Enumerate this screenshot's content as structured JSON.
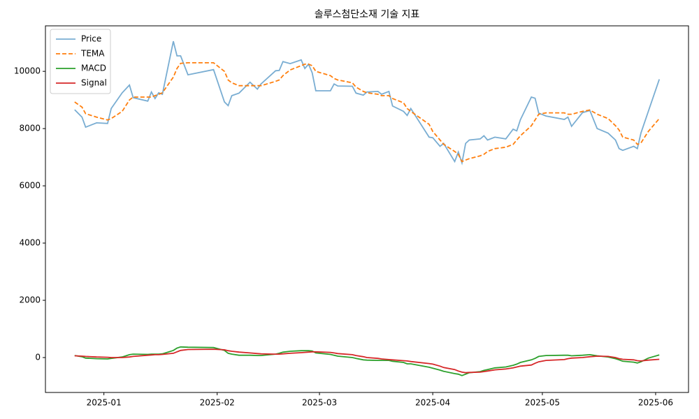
{
  "chart_data": {
    "type": "line",
    "title": "솔루스첨단소재 기술 지표",
    "x": [
      -8,
      -6,
      -5,
      -2,
      1,
      2,
      5,
      7,
      8,
      12,
      13,
      14,
      15,
      16,
      19,
      20,
      21,
      23,
      30,
      33,
      34,
      35,
      37,
      40,
      42,
      43,
      47,
      48,
      49,
      51,
      54,
      55,
      56,
      57,
      58,
      62,
      63,
      64,
      68,
      69,
      71,
      72,
      75,
      76,
      78,
      79,
      82,
      83,
      84,
      89,
      90,
      92,
      93,
      96,
      97,
      98,
      99,
      100,
      103,
      104,
      105,
      107,
      110,
      112,
      113,
      114,
      117,
      118,
      119,
      121,
      126,
      127,
      128,
      131,
      133,
      135,
      138,
      140,
      141,
      142,
      145,
      146,
      147,
      149,
      152
    ],
    "series": [
      {
        "name": "Price",
        "color": "#1f77b4",
        "alpha": 0.6,
        "style": "solid",
        "values": [
          8660,
          8400,
          8050,
          8200,
          8180,
          8700,
          9250,
          9520,
          9080,
          8960,
          9280,
          9050,
          9250,
          9200,
          11050,
          10540,
          10540,
          9880,
          10060,
          8930,
          8800,
          9150,
          9240,
          9620,
          9380,
          9560,
          10020,
          10030,
          10340,
          10270,
          10400,
          10100,
          10250,
          9950,
          9320,
          9320,
          9560,
          9490,
          9480,
          9240,
          9170,
          9280,
          9300,
          9200,
          9300,
          8790,
          8600,
          8460,
          8700,
          7700,
          7680,
          7380,
          7480,
          6850,
          7180,
          6800,
          7480,
          7600,
          7640,
          7750,
          7600,
          7700,
          7640,
          7980,
          7920,
          8310,
          9100,
          9060,
          8540,
          8440,
          8320,
          8400,
          8080,
          8560,
          8630,
          8000,
          7840,
          7600,
          7300,
          7240,
          7380,
          7300,
          7850,
          8600,
          9720
        ]
      },
      {
        "name": "TEMA",
        "color": "#ff7f0e",
        "alpha": 1,
        "style": "dashed",
        "values": [
          8930,
          8750,
          8520,
          8400,
          8300,
          8350,
          8600,
          9000,
          9100,
          9100,
          9100,
          9150,
          9200,
          9250,
          9800,
          10100,
          10280,
          10300,
          10300,
          10000,
          9700,
          9600,
          9500,
          9500,
          9500,
          9500,
          9650,
          9700,
          9850,
          10050,
          10200,
          10250,
          10250,
          10200,
          10000,
          9850,
          9750,
          9700,
          9600,
          9450,
          9300,
          9250,
          9200,
          9150,
          9150,
          9050,
          8900,
          8700,
          8600,
          8150,
          7900,
          7600,
          7450,
          7200,
          7100,
          6850,
          6900,
          6950,
          7050,
          7100,
          7200,
          7300,
          7350,
          7450,
          7600,
          7750,
          8100,
          8300,
          8500,
          8550,
          8550,
          8500,
          8500,
          8600,
          8650,
          8500,
          8350,
          8100,
          7950,
          7700,
          7600,
          7450,
          7500,
          7900,
          8350
        ]
      },
      {
        "name": "MACD",
        "color": "#2ca02c",
        "alpha": 1,
        "style": "solid",
        "values": [
          70,
          30,
          -20,
          -40,
          -50,
          -30,
          20,
          100,
          120,
          110,
          120,
          120,
          120,
          130,
          250,
          330,
          370,
          360,
          350,
          250,
          150,
          120,
          80,
          80,
          70,
          70,
          120,
          150,
          190,
          220,
          240,
          240,
          240,
          230,
          160,
          110,
          80,
          50,
          0,
          -30,
          -80,
          -90,
          -100,
          -100,
          -100,
          -130,
          -170,
          -220,
          -220,
          -340,
          -370,
          -440,
          -480,
          -560,
          -580,
          -630,
          -580,
          -530,
          -490,
          -450,
          -420,
          -360,
          -330,
          -270,
          -230,
          -170,
          -80,
          -30,
          40,
          70,
          80,
          80,
          60,
          80,
          100,
          60,
          20,
          -40,
          -80,
          -130,
          -160,
          -190,
          -150,
          -20,
          90
        ]
      },
      {
        "name": "Signal",
        "color": "#d62728",
        "alpha": 1,
        "style": "solid",
        "values": [
          60,
          50,
          40,
          20,
          10,
          0,
          0,
          20,
          40,
          80,
          90,
          100,
          100,
          110,
          150,
          200,
          250,
          280,
          290,
          270,
          240,
          220,
          190,
          160,
          140,
          130,
          120,
          120,
          130,
          150,
          170,
          180,
          190,
          200,
          200,
          180,
          160,
          140,
          100,
          70,
          30,
          0,
          -30,
          -50,
          -70,
          -80,
          -110,
          -120,
          -140,
          -210,
          -230,
          -300,
          -350,
          -420,
          -470,
          -510,
          -530,
          -520,
          -510,
          -490,
          -470,
          -430,
          -400,
          -360,
          -330,
          -300,
          -260,
          -200,
          -150,
          -100,
          -70,
          -40,
          -20,
          0,
          30,
          50,
          40,
          0,
          -40,
          -60,
          -80,
          -110,
          -120,
          -90,
          -60
        ]
      }
    ],
    "xlim": [
      -16,
      160
    ],
    "xticks": [
      {
        "value": 0,
        "label": "2025-01"
      },
      {
        "value": 31,
        "label": "2025-02"
      },
      {
        "value": 59,
        "label": "2025-03"
      },
      {
        "value": 90,
        "label": "2025-04"
      },
      {
        "value": 120,
        "label": "2025-05"
      },
      {
        "value": 151,
        "label": "2025-06"
      }
    ],
    "ylim": [
      -1220,
      11590
    ],
    "yticks": [
      0,
      2000,
      4000,
      6000,
      8000,
      10000
    ],
    "legend": "upper left",
    "grid": false
  }
}
